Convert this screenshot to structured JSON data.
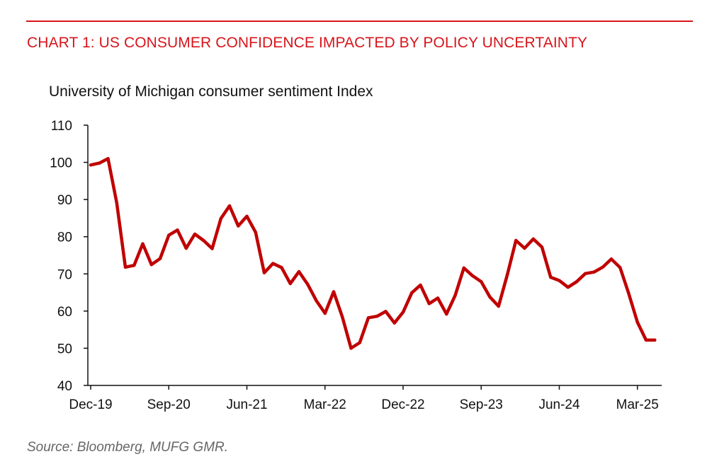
{
  "header": {
    "title": "CHART 1: US CONSUMER CONFIDENCE IMPACTED BY POLICY UNCERTAINTY"
  },
  "footer": {
    "source": "Source: Bloomberg, MUFG GMR."
  },
  "colors": {
    "accent": "#d7151b",
    "line": "#c00000",
    "axis": "#111111"
  },
  "chart_data": {
    "type": "line",
    "title": "",
    "subtitle": "University of Michigan consumer sentiment Index",
    "xlabel": "",
    "ylabel": "",
    "ylim": [
      40,
      110
    ],
    "yticks": [
      40,
      50,
      60,
      70,
      80,
      90,
      100,
      110
    ],
    "xtick_labels": [
      "Dec-19",
      "Sep-20",
      "Jun-21",
      "Mar-22",
      "Dec-22",
      "Sep-23",
      "Jun-24",
      "Mar-25"
    ],
    "grid": false,
    "legend": "none",
    "series": [
      {
        "x": [
          "Dec-19",
          "Jan-20",
          "Feb-20",
          "Mar-20",
          "Apr-20",
          "May-20",
          "Jun-20",
          "Jul-20",
          "Aug-20",
          "Sep-20",
          "Oct-20",
          "Nov-20",
          "Dec-20",
          "Jan-21",
          "Feb-21",
          "Mar-21",
          "Apr-21",
          "May-21",
          "Jun-21",
          "Jul-21",
          "Aug-21",
          "Sep-21",
          "Oct-21",
          "Nov-21",
          "Dec-21",
          "Jan-22",
          "Feb-22",
          "Mar-22",
          "Apr-22",
          "May-22",
          "Jun-22",
          "Jul-22",
          "Aug-22",
          "Sep-22",
          "Oct-22",
          "Nov-22",
          "Dec-22",
          "Jan-23",
          "Feb-23",
          "Mar-23",
          "Apr-23",
          "May-23",
          "Jun-23",
          "Jul-23",
          "Aug-23",
          "Sep-23",
          "Oct-23",
          "Nov-23",
          "Dec-23",
          "Jan-24",
          "Feb-24",
          "Mar-24",
          "Apr-24",
          "May-24",
          "Jun-24",
          "Jul-24",
          "Aug-24",
          "Sep-24",
          "Oct-24",
          "Nov-24",
          "Dec-24",
          "Jan-25",
          "Feb-25",
          "Mar-25",
          "Apr-25",
          "May-25"
        ],
        "values": [
          99.3,
          99.8,
          101.0,
          89.1,
          71.8,
          72.3,
          78.1,
          72.5,
          74.1,
          80.4,
          81.8,
          76.9,
          80.7,
          79.0,
          76.8,
          84.9,
          88.3,
          82.9,
          85.5,
          81.2,
          70.3,
          72.8,
          71.7,
          67.4,
          70.6,
          67.2,
          62.8,
          59.4,
          65.2,
          58.4,
          50.0,
          51.5,
          58.2,
          58.6,
          59.9,
          56.8,
          59.7,
          64.9,
          67.0,
          62.0,
          63.5,
          59.2,
          64.2,
          71.6,
          69.5,
          67.9,
          63.8,
          61.3,
          69.7,
          79.0,
          76.9,
          79.4,
          77.2,
          69.1,
          68.2,
          66.4,
          67.9,
          70.1,
          70.5,
          71.8,
          74.0,
          71.7,
          64.7,
          57.0,
          52.2,
          52.2
        ]
      }
    ]
  }
}
